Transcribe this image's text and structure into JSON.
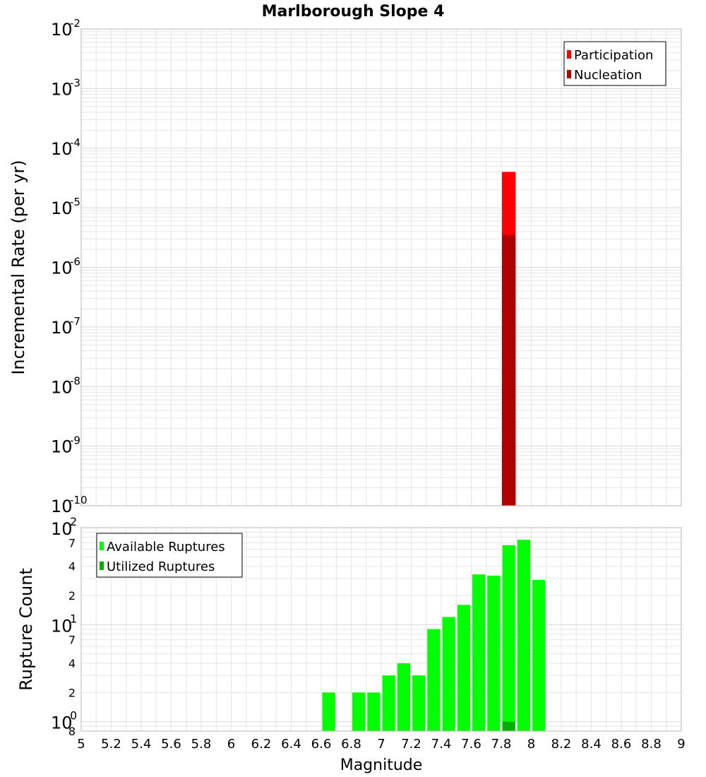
{
  "chart_data": [
    {
      "type": "bar",
      "title": "Marlborough Slope 4",
      "ylabel": "Incremental Rate (per yr)",
      "yscale": "log",
      "ylim": [
        1e-10,
        0.01
      ],
      "ytick_exponents": [
        "-10",
        "-9",
        "-8",
        "-7",
        "-6",
        "-5",
        "-4",
        "-3",
        "-2"
      ],
      "ytick_base": "10",
      "legend_position": "top-right",
      "series": [
        {
          "name": "Participation",
          "color": "#ff0000",
          "x": [
            7.85
          ],
          "values": [
            4e-05
          ]
        },
        {
          "name": "Nucleation",
          "color": "#b00000",
          "x": [
            7.85
          ],
          "values": [
            3.5e-06
          ]
        }
      ]
    },
    {
      "type": "bar",
      "ylabel": "Rupture Count",
      "yscale": "log",
      "ylim": [
        0.8,
        100
      ],
      "ytick_labels": [
        {
          "value": 1,
          "base": "10",
          "exp": "0"
        },
        {
          "value": 10,
          "base": "10",
          "exp": "1"
        },
        {
          "value": 100,
          "base": "10",
          "exp": "2"
        }
      ],
      "minor_tick_labels": [
        {
          "value": 0.8,
          "label": "8"
        },
        {
          "value": 2,
          "label": "2"
        },
        {
          "value": 4,
          "label": "4"
        },
        {
          "value": 7,
          "label": "7"
        },
        {
          "value": 20,
          "label": "2"
        },
        {
          "value": 40,
          "label": "4"
        },
        {
          "value": 70,
          "label": "7"
        }
      ],
      "legend_position": "top-left",
      "series": [
        {
          "name": "Available Ruptures",
          "color": "#00ff00",
          "x": [
            6.65,
            6.85,
            6.95,
            7.05,
            7.15,
            7.25,
            7.35,
            7.45,
            7.55,
            7.65,
            7.75,
            7.85,
            7.95,
            8.05
          ],
          "values": [
            2,
            2,
            2,
            3,
            4,
            3,
            9,
            12,
            16,
            33,
            32,
            66,
            75,
            29
          ]
        },
        {
          "name": "Utilized Ruptures",
          "color": "#00b000",
          "x": [
            7.85
          ],
          "values": [
            1
          ]
        }
      ]
    }
  ],
  "xaxis": {
    "label": "Magnitude",
    "xlim": [
      5,
      9
    ],
    "bin_width": 0.1,
    "ticks": [
      "5",
      "5.2",
      "5.4",
      "5.6",
      "5.8",
      "6",
      "6.2",
      "6.4",
      "6.6",
      "6.8",
      "7",
      "7.2",
      "7.4",
      "7.6",
      "7.8",
      "8",
      "8.2",
      "8.4",
      "8.6",
      "8.8",
      "9"
    ]
  },
  "colors": {
    "grid": "#e6e6e6",
    "frame": "#b4b4b4"
  }
}
